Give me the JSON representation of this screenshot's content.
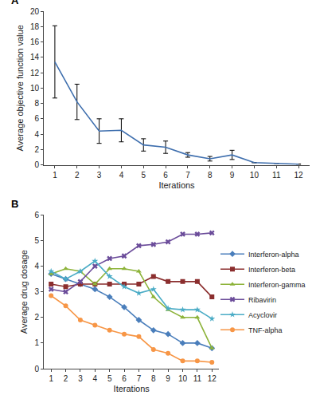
{
  "chart_data": [
    {
      "type": "line",
      "title": "A",
      "x_label": "Iterations",
      "y_label": "Average objective function value",
      "x": [
        1,
        2,
        3,
        4,
        5,
        6,
        7,
        8,
        9,
        10,
        11,
        12
      ],
      "values": [
        13.4,
        8.2,
        4.4,
        4.5,
        2.6,
        2.3,
        1.3,
        0.8,
        1.3,
        0.3,
        0.2,
        0.1
      ],
      "errors": [
        4.7,
        2.3,
        1.6,
        1.5,
        0.8,
        0.8,
        0.3,
        0.3,
        0.6,
        0,
        0,
        0
      ],
      "color": "#3f6fae",
      "xlim": [
        0.5,
        12.5
      ],
      "xticks": [
        1,
        2,
        3,
        4,
        5,
        6,
        7,
        8,
        9,
        10,
        11,
        12
      ],
      "ylim": [
        0,
        20
      ],
      "yticks": [
        0,
        2,
        4,
        6,
        8,
        10,
        12,
        14,
        16,
        18,
        20
      ],
      "grid": false
    },
    {
      "type": "line",
      "title": "B",
      "x_label": "Iterations",
      "y_label": "Average drug dosage",
      "x": [
        1,
        2,
        3,
        4,
        5,
        6,
        7,
        8,
        9,
        10,
        11,
        12
      ],
      "series": [
        {
          "name": "Interferon-alpha",
          "color": "#4a7ebb",
          "marker": "diamond",
          "values": [
            3.7,
            3.5,
            3.3,
            3.1,
            2.8,
            2.4,
            1.9,
            1.5,
            1.35,
            1.0,
            1.0,
            0.8
          ]
        },
        {
          "name": "Interferon-beta",
          "color": "#8b2e2e",
          "marker": "square",
          "values": [
            3.3,
            3.2,
            3.3,
            3.3,
            3.3,
            3.3,
            3.3,
            3.6,
            3.4,
            3.4,
            3.4,
            2.8
          ]
        },
        {
          "name": "Interferon-gamma",
          "color": "#8db33a",
          "marker": "triangle-up",
          "values": [
            3.7,
            3.9,
            3.8,
            3.3,
            3.9,
            3.9,
            3.8,
            2.8,
            2.3,
            2.0,
            2.0,
            0.8
          ]
        },
        {
          "name": "Ribavirin",
          "color": "#6b4c9a",
          "marker": "x",
          "values": [
            3.1,
            3.0,
            3.4,
            4.0,
            4.3,
            4.4,
            4.8,
            4.85,
            4.95,
            5.25,
            5.25,
            5.3
          ]
        },
        {
          "name": "Acyclovir",
          "color": "#4bacc6",
          "marker": "star",
          "values": [
            3.8,
            3.5,
            3.8,
            4.2,
            3.6,
            3.2,
            2.95,
            3.1,
            2.35,
            2.3,
            2.3,
            1.95
          ]
        },
        {
          "name": "TNF-alpha",
          "color": "#f79646",
          "marker": "circle",
          "values": [
            2.85,
            2.45,
            1.9,
            1.7,
            1.5,
            1.35,
            1.25,
            0.75,
            0.6,
            0.3,
            0.3,
            0.25
          ]
        }
      ],
      "xlim": [
        0.5,
        12.5
      ],
      "xticks": [
        1,
        2,
        3,
        4,
        5,
        6,
        7,
        8,
        9,
        10,
        11,
        12
      ],
      "ylim": [
        0,
        6
      ],
      "yticks": [
        0,
        1,
        2,
        3,
        4,
        5,
        6
      ],
      "grid": false,
      "legend": "right"
    }
  ]
}
